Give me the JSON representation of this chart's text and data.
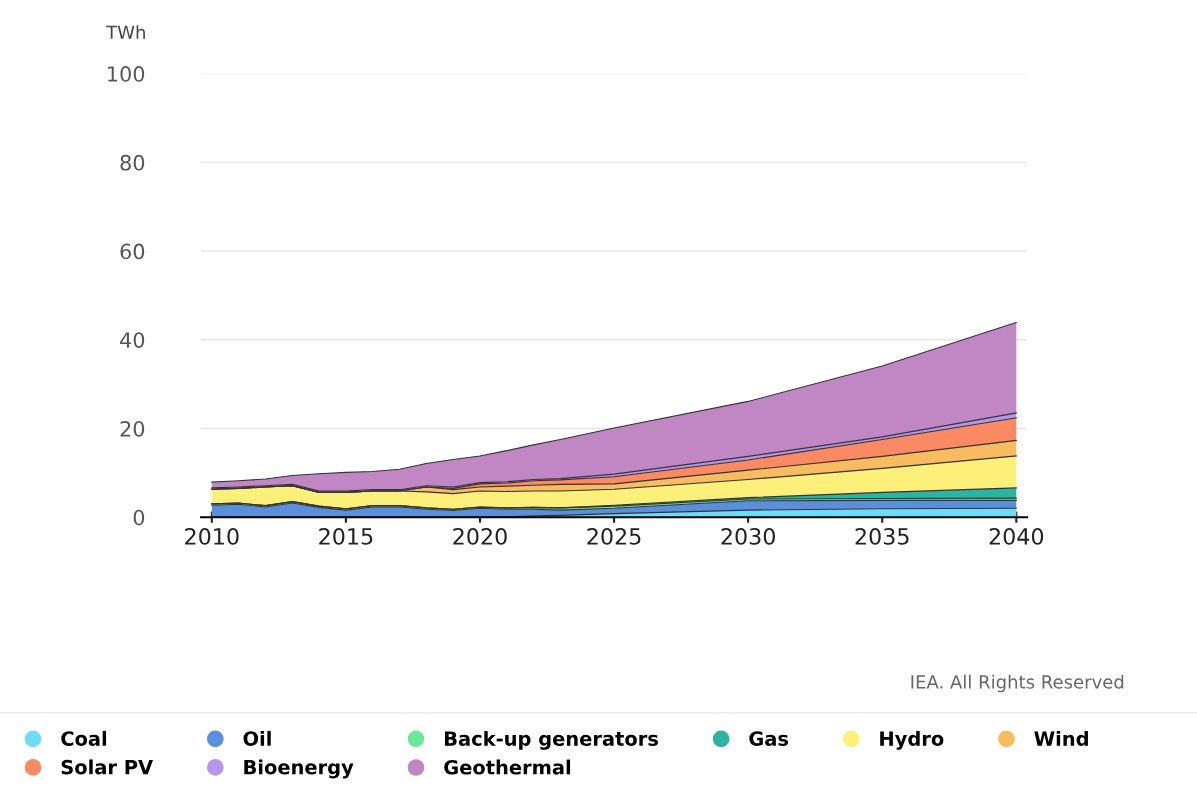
{
  "chart_data": {
    "type": "area",
    "stacked": true,
    "ylabel": "TWh",
    "x": [
      2010,
      2011,
      2012,
      2013,
      2014,
      2015,
      2016,
      2017,
      2018,
      2019,
      2020,
      2021,
      2022,
      2023,
      2025,
      2030,
      2035,
      2040
    ],
    "series": [
      {
        "name": "Coal",
        "color": "#6fdcf7",
        "values": [
          0,
          0,
          0,
          0,
          0,
          0,
          0,
          0,
          0,
          0,
          0,
          0.1,
          0.3,
          0.4,
          0.8,
          1.6,
          1.9,
          2.0
        ]
      },
      {
        "name": "Oil",
        "color": "#5b8fdc",
        "values": [
          2.7,
          2.9,
          2.3,
          3.2,
          2.2,
          1.6,
          2.3,
          2.3,
          1.8,
          1.5,
          2.0,
          1.7,
          1.5,
          1.2,
          1.2,
          2.1,
          1.9,
          1.8
        ]
      },
      {
        "name": "Back-up generators",
        "color": "#6de89a",
        "values": [
          0.3,
          0.3,
          0.3,
          0.3,
          0.3,
          0.3,
          0.3,
          0.3,
          0.3,
          0.3,
          0.3,
          0.3,
          0.4,
          0.5,
          0.5,
          0.4,
          0.4,
          0.5
        ]
      },
      {
        "name": "Gas",
        "color": "#2bb3a3",
        "values": [
          0,
          0,
          0,
          0,
          0,
          0,
          0,
          0,
          0,
          0,
          0,
          0,
          0,
          0,
          0.2,
          0.3,
          1.4,
          2.3
        ]
      },
      {
        "name": "Hydro",
        "color": "#fdf07a",
        "values": [
          3.3,
          3.3,
          4.2,
          3.6,
          3.1,
          3.7,
          3.3,
          3.3,
          3.6,
          3.5,
          3.6,
          3.7,
          3.7,
          3.8,
          3.6,
          4.1,
          5.4,
          7.2
        ]
      },
      {
        "name": "Wind",
        "color": "#f9bb5f",
        "values": [
          0,
          0,
          0,
          0,
          0,
          0,
          0,
          0,
          1.1,
          0.9,
          0.9,
          1.2,
          1.3,
          1.5,
          1.2,
          2.1,
          2.7,
          3.5
        ]
      },
      {
        "name": "Solar PV",
        "color": "#f98a63",
        "values": [
          0,
          0,
          0,
          0,
          0,
          0,
          0,
          0,
          0,
          0.3,
          0.7,
          0.7,
          1.0,
          1.0,
          1.6,
          2.3,
          3.8,
          5.1
        ]
      },
      {
        "name": "Bioenergy",
        "color": "#b497ec",
        "values": [
          0.3,
          0.3,
          0.3,
          0.3,
          0.3,
          0.3,
          0.3,
          0.3,
          0.3,
          0.3,
          0.3,
          0.3,
          0.3,
          0.3,
          0.6,
          0.8,
          0.6,
          1.1
        ]
      },
      {
        "name": "Geothermal",
        "color": "#c187c4",
        "values": [
          1.3,
          1.4,
          1.5,
          2.0,
          3.9,
          4.2,
          4.1,
          4.6,
          5.0,
          6.2,
          6.0,
          7.0,
          7.8,
          8.8,
          10.4,
          12.4,
          16.0,
          20.4
        ]
      }
    ],
    "xlim": [
      2009.6,
      2040.4
    ],
    "xticks": [
      2010,
      2015,
      2020,
      2025,
      2030,
      2035,
      2040
    ],
    "ylim": [
      0,
      100
    ],
    "yticks": [
      0,
      20,
      40,
      60,
      80,
      100
    ],
    "grid": "y",
    "legend": "bottom",
    "annotations": [
      "IEA. All Rights Reserved"
    ]
  }
}
